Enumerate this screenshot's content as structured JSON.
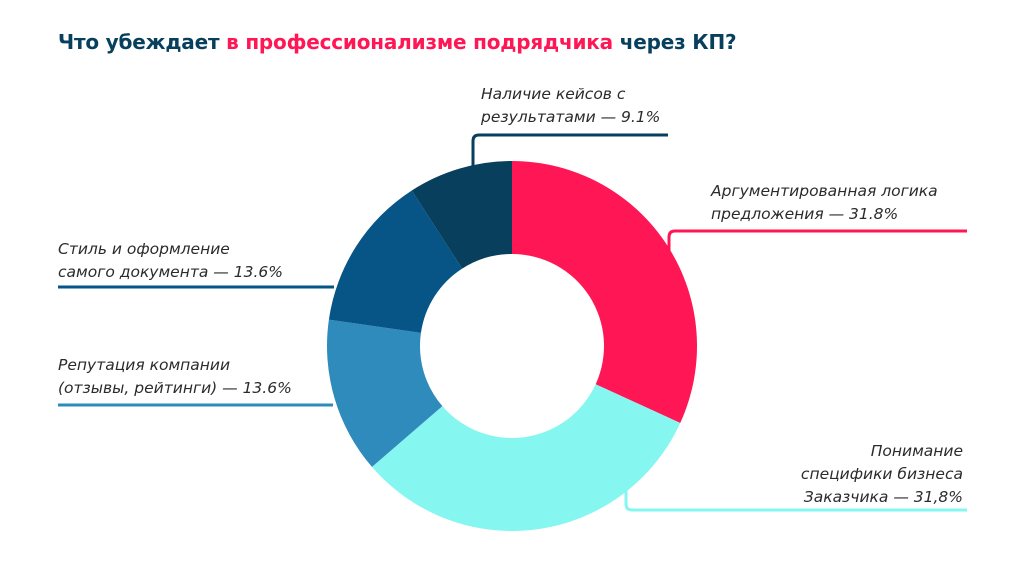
{
  "title": {
    "part1": "Что убеждает ",
    "part2": "в профессионализме подрядчика",
    "part3": " через КП?",
    "color_main": "#073f5c",
    "color_accent": "#ff1654"
  },
  "chart_data": {
    "type": "pie",
    "variant": "donut",
    "segments": [
      {
        "label_lines": [
          "Аргументированная логика",
          "предложения — 31.8%"
        ],
        "value": 31.8,
        "color": "#ff1654"
      },
      {
        "label_lines": [
          "Понимание",
          "специфики бизнеса",
          "Заказчика — 31,8%"
        ],
        "value": 31.8,
        "color": "#85f6f0"
      },
      {
        "label_lines": [
          "Репутация компании",
          "(отзывы, рейтинги) — 13.6%"
        ],
        "value": 13.6,
        "color": "#2f8bbb"
      },
      {
        "label_lines": [
          "Стиль и оформление",
          "самого документа — 13.6%"
        ],
        "value": 13.6,
        "color": "#075487"
      },
      {
        "label_lines": [
          "Наличие кейсов с",
          "результатами — 9.1%"
        ],
        "value": 9.1,
        "color": "#073f5c"
      }
    ]
  }
}
